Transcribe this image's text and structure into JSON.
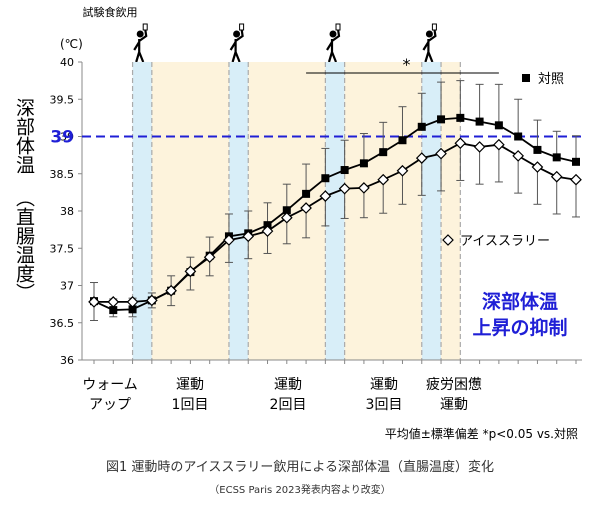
{
  "chart_data": {
    "type": "line",
    "header": "試験食飲用",
    "unit": "(℃)",
    "y_label": [
      "深部体温",
      "（直腸温度）"
    ],
    "categories": [
      null,
      null,
      null,
      null,
      null,
      null,
      null,
      null,
      null,
      null,
      null,
      null,
      null,
      null,
      null,
      null,
      null,
      null,
      null,
      null,
      null,
      null,
      null,
      null,
      null,
      null
    ],
    "ylim": [
      36,
      40
    ],
    "yticks": [
      36,
      36.5,
      37,
      37.5,
      38,
      38.5,
      39,
      39.5,
      40
    ],
    "series": [
      {
        "name": "対照",
        "color": "#000000",
        "marker": "square",
        "values": [
          36.79,
          36.67,
          36.68,
          36.8,
          36.93,
          37.18,
          37.4,
          37.66,
          37.7,
          37.81,
          38.01,
          38.23,
          38.44,
          38.55,
          38.64,
          38.79,
          38.95,
          39.13,
          39.23,
          39.25,
          39.2,
          39.15,
          39.0,
          38.82,
          38.72,
          38.66
        ],
        "errors": [
          0.25,
          0.15,
          0.15,
          0.1,
          0.2,
          0.2,
          0.25,
          0.3,
          0.3,
          0.3,
          0.35,
          0.4,
          0.4,
          0.4,
          0.4,
          0.4,
          0.45,
          0.45,
          0.5,
          0.5,
          0.5,
          0.55,
          0.5,
          0.4,
          0.35,
          0.35
        ]
      },
      {
        "name": "アイススラリー",
        "color": "#ffffff",
        "marker": "diamond",
        "values": [
          36.78,
          36.78,
          36.78,
          36.8,
          36.93,
          37.19,
          37.38,
          37.61,
          37.66,
          37.73,
          37.91,
          38.04,
          38.2,
          38.3,
          38.31,
          38.42,
          38.54,
          38.71,
          38.77,
          38.91,
          38.86,
          38.89,
          38.74,
          38.59,
          38.46,
          38.42
        ],
        "errors": [
          0.25,
          0.2,
          0.2,
          0.1,
          0.2,
          0.25,
          0.25,
          0.3,
          0.3,
          0.3,
          0.35,
          0.4,
          0.4,
          0.4,
          0.4,
          0.45,
          0.45,
          0.5,
          0.5,
          0.5,
          0.5,
          0.5,
          0.5,
          0.5,
          0.5,
          0.5
        ]
      }
    ],
    "reference_line": {
      "value": 39,
      "color": "#1f1fd6"
    },
    "significance": "*",
    "annotation": [
      "深部体温",
      "上昇の抑制"
    ],
    "annotation_color": "#1f1fd6",
    "phases": [
      [
        "ウォーム",
        "アップ"
      ],
      [
        "運動",
        "1回目"
      ],
      [
        "運動",
        "2回目"
      ],
      [
        "運動",
        "3回目"
      ],
      [
        "疲労困憊",
        "運動"
      ]
    ],
    "note": "平均値±標準偏差 *p<0.05 vs.対照",
    "caption": "図1 運動時のアイススラリー飲用による深部体温（直腸温度）変化",
    "source": "（ECSS Paris 2023発表内容より改変）"
  }
}
